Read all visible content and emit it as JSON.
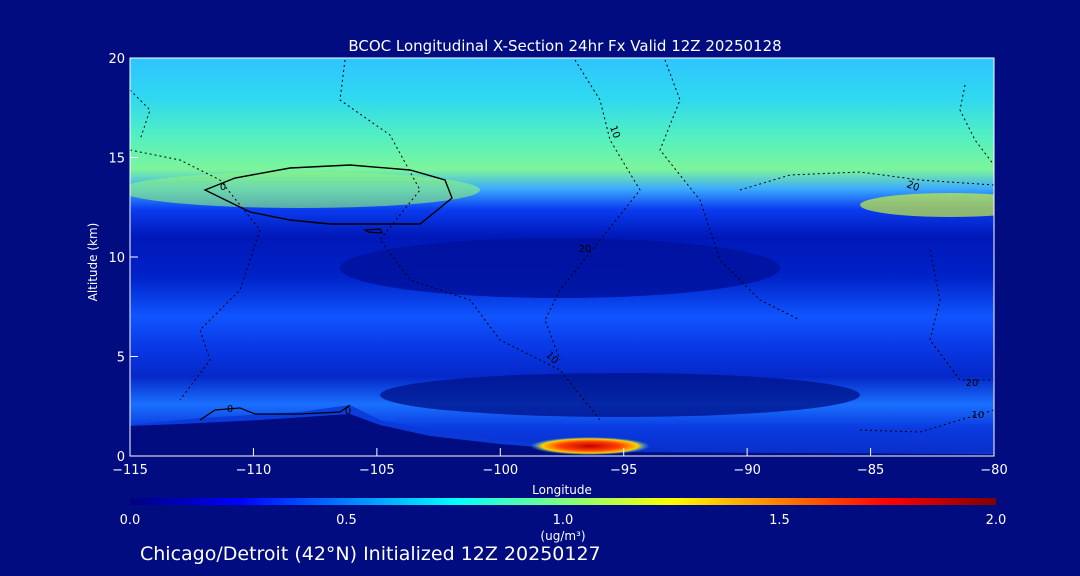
{
  "chart_data": {
    "type": "heatmap",
    "title": "BCOC Longitudinal X-Section 24hr  Fx Valid 12Z 20250128",
    "xlabel": "Longitude",
    "ylabel": "Altitude (km)",
    "xlim": [
      -115,
      -80
    ],
    "ylim": [
      0,
      20
    ],
    "x_ticks": [
      -115,
      -110,
      -105,
      -100,
      -95,
      -90,
      -85,
      -80
    ],
    "y_ticks": [
      0,
      5,
      10,
      15,
      20
    ],
    "x_tick_labels": [
      "−115",
      "−110",
      "−105",
      "−100",
      "−95",
      "−90",
      "−85",
      "−80"
    ],
    "y_tick_labels": [
      "0",
      "5",
      "10",
      "15",
      "20"
    ],
    "colorbar": {
      "range": [
        0.0,
        2.0
      ],
      "ticks": [
        0.0,
        0.5,
        1.0,
        1.5,
        2.0
      ],
      "tick_labels": [
        "0.0",
        "0.5",
        "1.0",
        "1.5",
        "2.0"
      ],
      "unit_label": "(ug/m³)",
      "colormap": "jet"
    },
    "bands": [
      {
        "alt_range": [
          16.5,
          20.0
        ],
        "value": 0.62
      },
      {
        "alt_range": [
          14.5,
          16.5
        ],
        "value": 0.82
      },
      {
        "alt_range": [
          12.5,
          14.5
        ],
        "value": 0.92
      },
      {
        "alt_range": [
          11.5,
          12.5
        ],
        "value": 0.45
      },
      {
        "alt_range": [
          9.0,
          11.5
        ],
        "value": 0.15
      },
      {
        "alt_range": [
          5.5,
          9.0
        ],
        "value": 0.28
      },
      {
        "alt_range": [
          3.0,
          5.5
        ],
        "value": 0.22
      },
      {
        "alt_range": [
          1.5,
          3.0
        ],
        "value": 0.35
      },
      {
        "alt_range": [
          0.0,
          1.5
        ],
        "value": 0.3
      }
    ],
    "plumes": [
      {
        "name": "surface maximum",
        "lon": -96.5,
        "alt": 0.5,
        "value": 2.0
      },
      {
        "name": "upper layer maximum",
        "lon": -107,
        "alt": 13.5,
        "value": 0.9
      }
    ],
    "contour_labels": [
      "0",
      "0",
      "0",
      "10",
      "10",
      "20",
      "20",
      "20",
      "10"
    ]
  },
  "footer": {
    "caption": "Chicago/Detroit (42°N) Initialized 12Z 20250127"
  },
  "colors": {
    "background": "#000c7f",
    "text": "#ffffff"
  }
}
